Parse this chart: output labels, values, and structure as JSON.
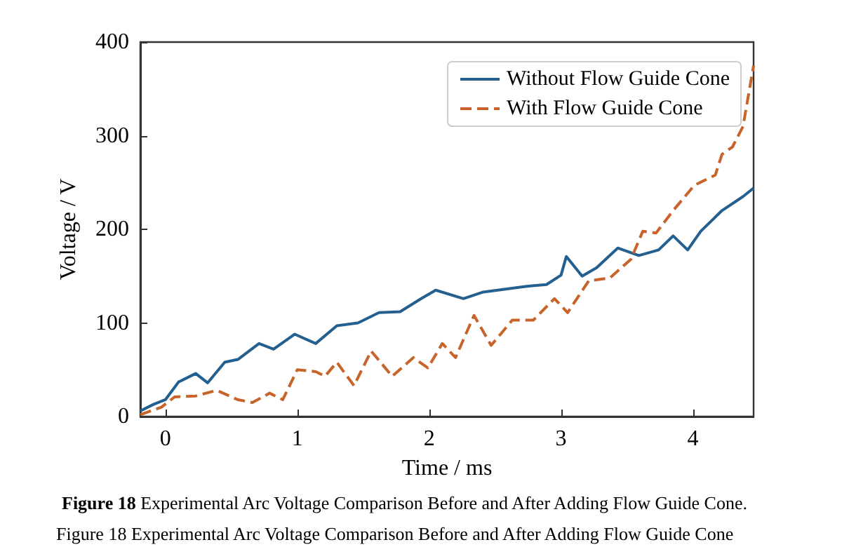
{
  "chart_data": {
    "type": "line",
    "xlabel": "Time / ms",
    "ylabel": "Voltage / V",
    "xlim": [
      -0.19,
      4.46
    ],
    "ylim": [
      0,
      400
    ],
    "xticks": [
      0,
      1,
      2,
      3,
      4
    ],
    "yticks": [
      0,
      100,
      200,
      300,
      400
    ],
    "grid": false,
    "legend": "top right",
    "marker": "none",
    "annotations": [
      "Figure 18 Experimental Arc Voltage Comparison Before and After Adding Flow Guide Cone.",
      "Figure 18 Experimental Arc Voltage Comparison Before and After Adding Flow Guide Cone"
    ],
    "series": [
      {
        "name": "Without Flow Guide Cone",
        "color": "#235f8f",
        "line_style": "solid",
        "x": [
          -0.19,
          -0.09,
          0,
          0.1,
          0.23,
          0.32,
          0.45,
          0.55,
          0.71,
          0.82,
          0.98,
          1.14,
          1.3,
          1.46,
          1.62,
          1.78,
          1.94,
          2.05,
          2.26,
          2.41,
          2.57,
          2.73,
          2.89,
          3.0,
          3.04,
          3.16,
          3.27,
          3.43,
          3.59,
          3.74,
          3.85,
          3.96,
          4.06,
          4.22,
          4.38,
          4.46
        ],
        "values": [
          6,
          13,
          18,
          37,
          46,
          36,
          58,
          61,
          78,
          72,
          88,
          78,
          97,
          100,
          111,
          112,
          126,
          135,
          126,
          133,
          136,
          139,
          141,
          151,
          171,
          150,
          159,
          180,
          172,
          178,
          193,
          178,
          198,
          220,
          235,
          244
        ]
      },
      {
        "name": "With Flow Guide Cone",
        "color": "#c8642a",
        "line_style": "dashed",
        "x": [
          -0.19,
          -0.03,
          0.07,
          0.23,
          0.39,
          0.55,
          0.66,
          0.79,
          0.89,
          1.0,
          1.14,
          1.21,
          1.3,
          1.43,
          1.56,
          1.72,
          1.88,
          1.99,
          2.1,
          2.2,
          2.34,
          2.47,
          2.63,
          2.79,
          2.95,
          3.05,
          3.21,
          3.37,
          3.53,
          3.62,
          3.72,
          3.85,
          4.01,
          4.17,
          4.22,
          4.3,
          4.38,
          4.46
        ],
        "values": [
          2,
          10,
          21,
          22,
          28,
          18,
          15,
          25,
          18,
          50,
          48,
          43,
          58,
          33,
          70,
          43,
          63,
          52,
          78,
          63,
          108,
          76,
          103,
          103,
          126,
          111,
          145,
          148,
          168,
          198,
          196,
          220,
          247,
          258,
          280,
          288,
          310,
          375
        ]
      }
    ]
  }
}
